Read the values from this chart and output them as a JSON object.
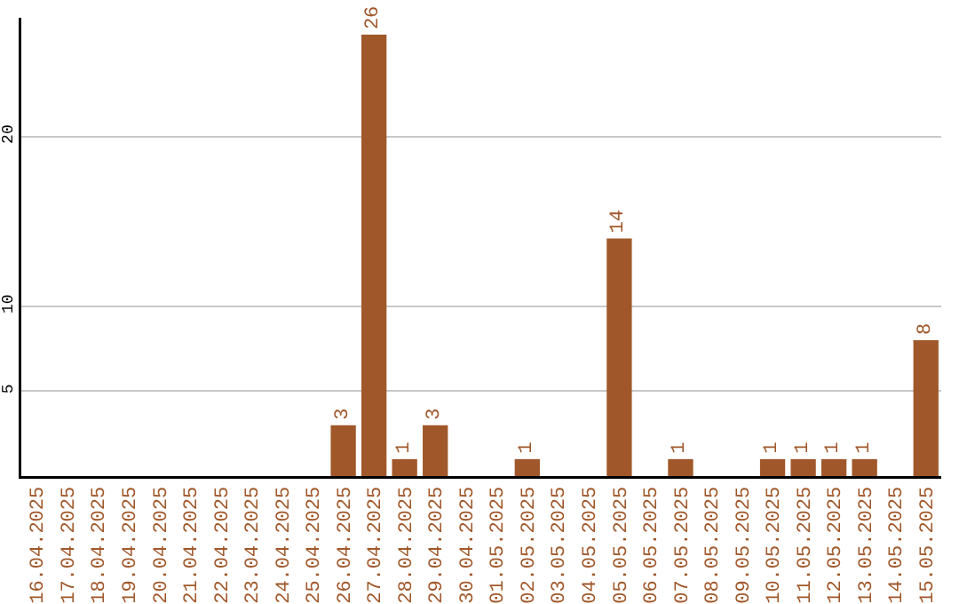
{
  "chart_data": {
    "type": "bar",
    "categories": [
      "16.04.2025",
      "17.04.2025",
      "18.04.2025",
      "19.04.2025",
      "20.04.2025",
      "21.04.2025",
      "22.04.2025",
      "23.04.2025",
      "24.04.2025",
      "25.04.2025",
      "26.04.2025",
      "27.04.2025",
      "28.04.2025",
      "29.04.2025",
      "30.04.2025",
      "01.05.2025",
      "02.05.2025",
      "03.05.2025",
      "04.05.2025",
      "05.05.2025",
      "06.05.2025",
      "07.05.2025",
      "08.05.2025",
      "09.05.2025",
      "10.05.2025",
      "11.05.2025",
      "12.05.2025",
      "13.05.2025",
      "14.05.2025",
      "15.05.2025"
    ],
    "values": [
      0,
      0,
      0,
      0,
      0,
      0,
      0,
      0,
      0,
      0,
      3,
      26,
      1,
      3,
      0,
      0,
      1,
      0,
      0,
      14,
      0,
      1,
      0,
      0,
      1,
      1,
      1,
      1,
      0,
      8
    ],
    "value_labels": [
      null,
      null,
      null,
      null,
      null,
      null,
      null,
      null,
      null,
      null,
      "3",
      "26",
      "1",
      "3",
      null,
      null,
      "1",
      null,
      null,
      "14",
      null,
      "1",
      null,
      null,
      "1",
      "1",
      "1",
      "1",
      null,
      "8"
    ],
    "color": "#a0582a",
    "ylim": [
      0,
      27
    ],
    "yticks": [
      5,
      10,
      20
    ],
    "grid": "y"
  }
}
